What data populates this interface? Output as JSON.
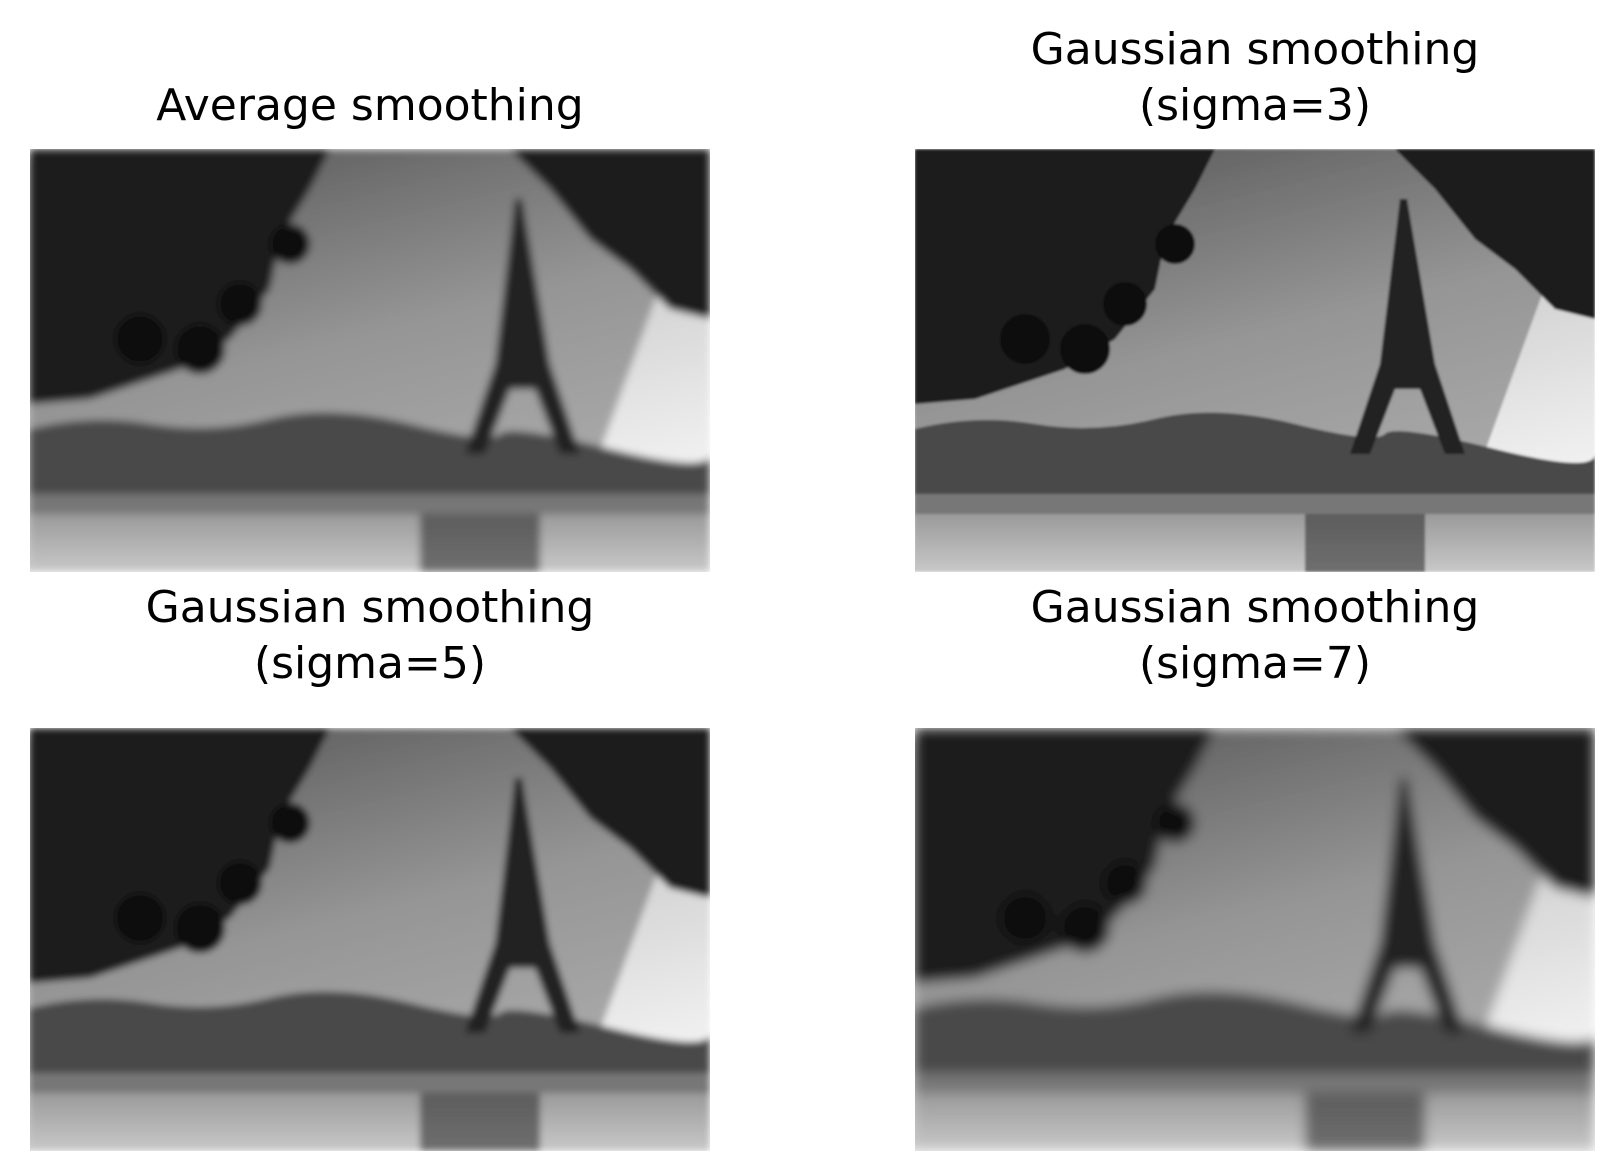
{
  "figure": {
    "panels": [
      {
        "title_lines": [
          "Average smoothing"
        ],
        "blur": 4
      },
      {
        "title_lines": [
          "Gaussian smoothing",
          "(sigma=3)"
        ],
        "blur": 1.2
      },
      {
        "title_lines": [
          "Gaussian smoothing",
          "(sigma=5)"
        ],
        "blur": 3.5
      },
      {
        "title_lines": [
          "Gaussian smoothing",
          "(sigma=7)"
        ],
        "blur": 6
      }
    ]
  }
}
